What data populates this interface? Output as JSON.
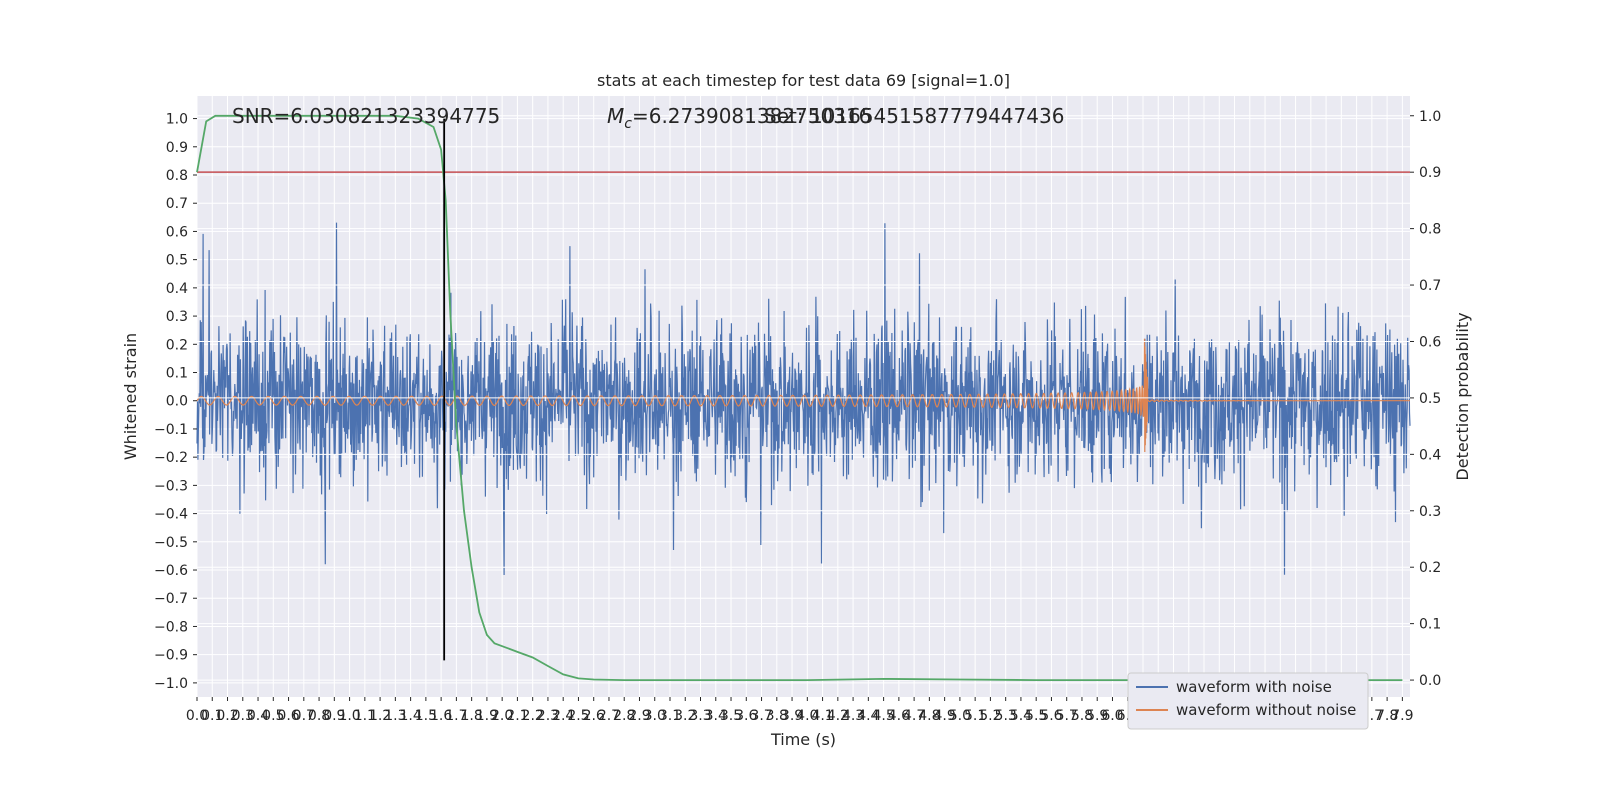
{
  "chart_data": {
    "type": "line",
    "title": "stats at each timestep for test data 69 [signal=1.0]",
    "xlabel": "Time (s)",
    "ylabel": "Whitened strain",
    "y2label": "Detection probability",
    "xlim": [
      0.0,
      7.95
    ],
    "ylim": [
      -1.05,
      1.08
    ],
    "y2lim": [
      -0.03,
      1.035
    ],
    "x_ticks": [
      0.0,
      0.1,
      0.2,
      0.3,
      0.4,
      0.5,
      0.6,
      0.7,
      0.8,
      0.9,
      1.0,
      1.1,
      1.2,
      1.3,
      1.4,
      1.5,
      1.6,
      1.7,
      1.8,
      1.9,
      2.0,
      2.1,
      2.2,
      2.3,
      2.4,
      2.5,
      2.6,
      2.7,
      2.8,
      2.9,
      3.0,
      3.1,
      3.2,
      3.3,
      3.4,
      3.5,
      3.6,
      3.7,
      3.8,
      3.9,
      4.0,
      4.1,
      4.2,
      4.3,
      4.4,
      4.5,
      4.6,
      4.7,
      4.8,
      4.9,
      5.0,
      5.1,
      5.2,
      5.3,
      5.4,
      5.5,
      5.6,
      5.7,
      5.8,
      5.9,
      6.0,
      6.1,
      6.2,
      6.3,
      6.4,
      6.5,
      6.6,
      6.7,
      6.8,
      6.9,
      7.0,
      7.1,
      7.2,
      7.3,
      7.4,
      7.5,
      7.6,
      7.7,
      7.8,
      7.9
    ],
    "y_ticks": [
      -1.0,
      -0.9,
      -0.8,
      -0.7,
      -0.6,
      -0.5,
      -0.4,
      -0.3,
      -0.2,
      -0.1,
      0.0,
      0.1,
      0.2,
      0.3,
      0.4,
      0.5,
      0.6,
      0.7,
      0.8,
      0.9,
      1.0
    ],
    "y2_ticks": [
      0.0,
      0.1,
      0.2,
      0.3,
      0.4,
      0.5,
      0.6,
      0.7,
      0.8,
      0.9,
      1.0
    ],
    "annotations": {
      "snr": "SNR=6.030821323394775",
      "mc_prefix": "M",
      "mc_sub": "c",
      "mc_value": "=6.2739081382750316",
      "overlap": "Set: 10165451587779447436"
    },
    "series": [
      {
        "name": "waveform with noise",
        "axis": "left",
        "color": "#4c72b0",
        "description_note": "dense noise, amplitude roughly within [-0.9, 1.0]"
      },
      {
        "name": "waveform without noise",
        "axis": "left",
        "color": "#dd8452",
        "chirp": {
          "start": 0.0,
          "merger": 6.23,
          "amp_start": 0.015,
          "amp_peak": 0.17,
          "amp_min": -0.15
        }
      },
      {
        "name": "detection probability",
        "axis": "right",
        "color": "#55a868",
        "x": [
          0.0,
          0.06,
          0.12,
          0.3,
          0.6,
          1.0,
          1.3,
          1.45,
          1.55,
          1.6,
          1.63,
          1.66,
          1.7,
          1.75,
          1.8,
          1.85,
          1.9,
          1.95,
          2.0,
          2.05,
          2.1,
          2.2,
          2.3,
          2.4,
          2.5,
          2.6,
          2.8,
          3.0,
          3.5,
          4.0,
          4.5,
          5.0,
          5.5,
          6.0,
          6.5,
          7.0,
          7.5,
          7.9
        ],
        "y": [
          0.9,
          0.99,
          1.0,
          1.0,
          1.0,
          1.0,
          1.0,
          0.995,
          0.98,
          0.94,
          0.85,
          0.65,
          0.45,
          0.3,
          0.2,
          0.12,
          0.08,
          0.065,
          0.06,
          0.055,
          0.05,
          0.04,
          0.025,
          0.01,
          0.003,
          0.001,
          0.0,
          0.0,
          0.0,
          0.0,
          0.002,
          0.001,
          0.0,
          0.0,
          0.0,
          0.0,
          0.0,
          0.0
        ]
      }
    ],
    "threshold": {
      "value": 0.9,
      "axis": "right",
      "color": "#c44e52"
    },
    "vline": {
      "x": 1.62,
      "color": "#000000"
    },
    "legend_position": "bottom-right",
    "grid": true,
    "style": {
      "axes_bg": "#eaeaf2",
      "grid_color": "#ffffff"
    }
  }
}
